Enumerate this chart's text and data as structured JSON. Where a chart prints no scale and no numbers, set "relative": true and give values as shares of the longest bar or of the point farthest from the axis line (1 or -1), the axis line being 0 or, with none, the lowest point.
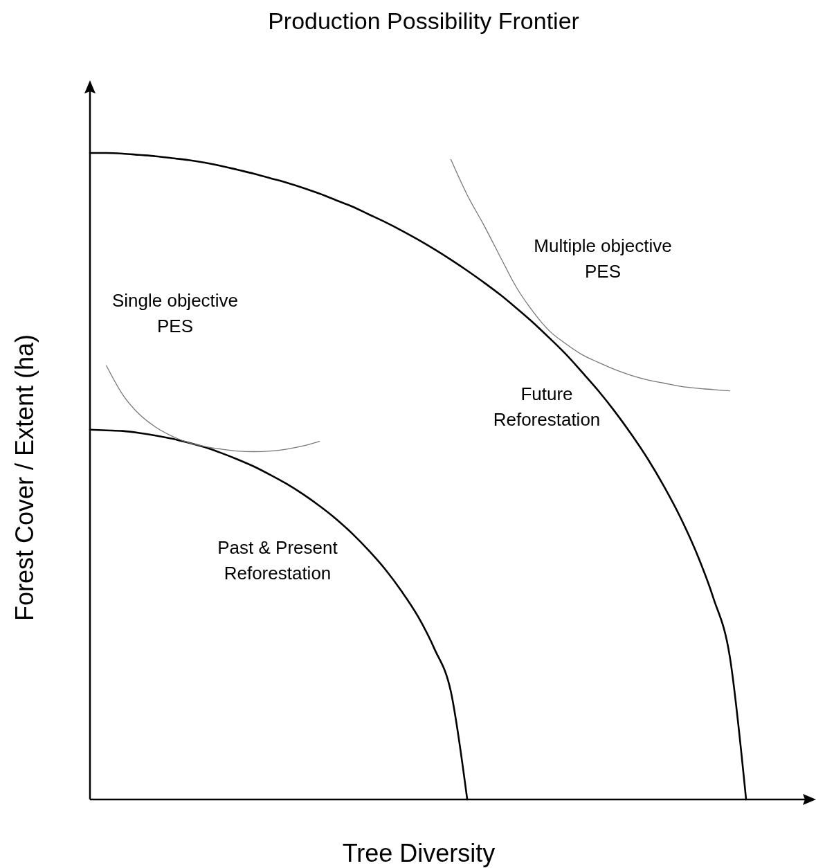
{
  "chart_data": {
    "type": "line",
    "title": "Production Possibility Frontier",
    "xlabel": "Tree Diversity",
    "ylabel": "Forest Cover / Extent (ha)",
    "relative": true,
    "categories": [
      null,
      null,
      null,
      null,
      null,
      null,
      null,
      null,
      null,
      null,
      null,
      null,
      null,
      null,
      null,
      null,
      null,
      null,
      null,
      null,
      null,
      null,
      null,
      null,
      null,
      null,
      null,
      null,
      null,
      null,
      null,
      null,
      null,
      null,
      null,
      null,
      null,
      null,
      null,
      null,
      null,
      null,
      null,
      null
    ],
    "series": [
      {
        "color": "#000000",
        "values": [
          1.0,
          1.0,
          0.999,
          0.997,
          0.995,
          0.992,
          0.989,
          0.985,
          0.98,
          0.974,
          0.968,
          0.961,
          0.954,
          0.946,
          0.937,
          0.927,
          0.917,
          0.905,
          0.893,
          0.88,
          0.866,
          0.851,
          0.835,
          0.818,
          0.8,
          0.781,
          0.76,
          0.738,
          0.714,
          0.689,
          0.661,
          0.632,
          0.6,
          0.565,
          0.527,
          0.484,
          0.436,
          0.38,
          0.312,
          0.222,
          0,
          null,
          null,
          null
        ]
      },
      {
        "color": "#000000",
        "values": [
          0.572,
          0.571,
          0.57,
          0.567,
          0.563,
          0.558,
          0.552,
          0.545,
          0.536,
          0.526,
          0.515,
          0.502,
          0.488,
          0.472,
          0.454,
          0.434,
          0.411,
          0.385,
          0.356,
          0.322,
          0.283,
          0.233,
          0.167,
          0,
          null,
          null,
          null,
          null,
          null,
          null,
          null,
          null,
          null,
          null,
          null,
          null,
          null,
          null,
          null,
          null,
          null,
          null,
          null,
          null
        ]
      },
      {
        "color": "#777777",
        "values": [
          null,
          0.671,
          0.626,
          0.596,
          0.576,
          0.562,
          0.552,
          0.546,
          0.542,
          0.539,
          0.538,
          0.539,
          0.542,
          0.547,
          0.554,
          null,
          null,
          null,
          null,
          null,
          null,
          null,
          null,
          null,
          null,
          null,
          null,
          null,
          null,
          null,
          null,
          null,
          null,
          null,
          null,
          null,
          null,
          null,
          null,
          null,
          null,
          null,
          null,
          null
        ]
      },
      {
        "color": "#777777",
        "values": [
          null,
          null,
          null,
          null,
          null,
          null,
          null,
          null,
          null,
          null,
          null,
          null,
          null,
          null,
          null,
          null,
          null,
          null,
          null,
          null,
          null,
          null,
          0.99,
          0.935,
          0.889,
          0.84,
          0.792,
          0.755,
          0.725,
          0.705,
          0.688,
          0.676,
          0.665,
          0.656,
          0.649,
          0.644,
          0.639,
          0.636,
          0.634,
          0.632,
          null,
          null,
          null,
          null
        ]
      }
    ],
    "annotations": [
      "Single objective\nPES",
      "Multiple objective\nPES",
      "Future\nReforestation",
      "Past & Present\nReforestation"
    ]
  }
}
